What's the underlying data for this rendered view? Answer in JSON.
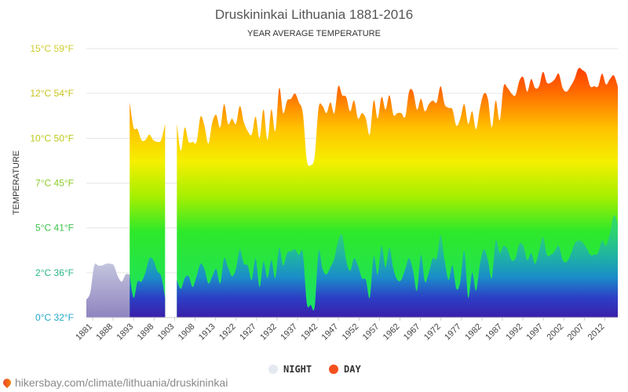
{
  "chart_data": {
    "type": "area",
    "title": "Druskininkai Lithuania 1881-2016",
    "subtitle": "YEAR AVERAGE TEMPERATURE",
    "ylabel": "TEMPERATURE",
    "ylim": [
      0,
      15
    ],
    "xlim": [
      1881,
      2016
    ],
    "yticks": [
      {
        "value": 0,
        "label": "0°C 32°F",
        "color": "#22a8c8"
      },
      {
        "value": 2.5,
        "label": "2°C 36°F",
        "color": "#2ab58a"
      },
      {
        "value": 5,
        "label": "5°C 41°F",
        "color": "#3dc24a"
      },
      {
        "value": 7.5,
        "label": "7°C 45°F",
        "color": "#8ccc28"
      },
      {
        "value": 10,
        "label": "10°C 50°F",
        "color": "#bdc91a"
      },
      {
        "value": 12.5,
        "label": "12°C 54°F",
        "color": "#c9c31c"
      },
      {
        "value": 15,
        "label": "15°C 59°F",
        "color": "#cfcb2a"
      }
    ],
    "xticks": [
      "1881",
      "1888",
      "1893",
      "1898",
      "1903",
      "1908",
      "1913",
      "1922",
      "1927",
      "1932",
      "1937",
      "1942",
      "1947",
      "1952",
      "1957",
      "1962",
      "1967",
      "1972",
      "1977",
      "1982",
      "1987",
      "1992",
      "1997",
      "2002",
      "2007",
      "2012"
    ],
    "grid": true,
    "legend": {
      "position": "bottom-center",
      "items": [
        {
          "name": "NIGHT",
          "color": "#e4e8f0"
        },
        {
          "name": "DAY",
          "color": "#f4511e"
        }
      ]
    },
    "early_night": {
      "x": [
        1881,
        1882,
        1883,
        1884,
        1885,
        1886,
        1887,
        1888,
        1889,
        1890,
        1891,
        1892
      ],
      "y": [
        1.0,
        1.4,
        2.9,
        2.9,
        2.9,
        3.0,
        3.0,
        2.9,
        2.3,
        2.0,
        2.4,
        2.4
      ]
    },
    "series": [
      {
        "name": "DAY",
        "x": [
          1892,
          1893,
          1894,
          1895,
          1896,
          1897,
          1898,
          1899,
          1900,
          1901,
          1902,
          1903,
          1904,
          1905,
          1906,
          1907,
          1908,
          1909,
          1910,
          1911,
          1912,
          1913,
          1914,
          1915,
          1916,
          1917,
          1918,
          1919,
          1920,
          1921,
          1922,
          1923,
          1924,
          1925,
          1926,
          1927,
          1928,
          1929,
          1930,
          1931,
          1932,
          1933,
          1934,
          1935,
          1936,
          1937,
          1938,
          1939,
          1940,
          1941,
          1942,
          1943,
          1944,
          1945,
          1946,
          1947,
          1948,
          1949,
          1950,
          1951,
          1952,
          1953,
          1954,
          1955,
          1956,
          1957,
          1958,
          1959,
          1960,
          1961,
          1962,
          1963,
          1964,
          1965,
          1966,
          1967,
          1968,
          1969,
          1970,
          1971,
          1972,
          1973,
          1974,
          1975,
          1976,
          1977,
          1978,
          1979,
          1980,
          1981,
          1982,
          1983,
          1984,
          1985,
          1986,
          1987,
          1988,
          1989,
          1990,
          1991,
          1992,
          1993,
          1994,
          1995,
          1996,
          1997,
          1998,
          1999,
          2000,
          2001,
          2002,
          2003,
          2004,
          2005,
          2006,
          2007,
          2008,
          2009,
          2010,
          2011,
          2012,
          2013,
          2014,
          2015,
          2016
        ],
        "values": [
          12.0,
          10.6,
          10.5,
          9.9,
          9.9,
          10.2,
          9.9,
          9.8,
          9.9,
          10.8,
          null,
          null,
          10.8,
          9.3,
          10.6,
          9.8,
          9.8,
          9.8,
          11.2,
          10.7,
          9.7,
          10.9,
          11.3,
          10.6,
          11.9,
          10.8,
          11.1,
          10.8,
          11.8,
          10.9,
          10.4,
          10.2,
          11.2,
          10.0,
          11.6,
          9.9,
          11.6,
          10.4,
          12.8,
          11.4,
          12.1,
          12.2,
          12.5,
          12.0,
          11.4,
          8.8,
          8.5,
          9.0,
          11.7,
          11.8,
          11.4,
          12.0,
          11.4,
          12.9,
          12.4,
          12.3,
          11.5,
          12.1,
          11.1,
          11.4,
          11.1,
          10.2,
          12.1,
          11.1,
          12.3,
          11.6,
          12.4,
          11.3,
          11.4,
          11.4,
          11.2,
          12.6,
          12.6,
          11.6,
          12.2,
          11.5,
          11.9,
          12.1,
          12.0,
          12.9,
          11.9,
          11.7,
          11.6,
          10.7,
          11.1,
          11.9,
          10.8,
          11.5,
          10.5,
          11.7,
          12.5,
          12.2,
          10.6,
          12.1,
          11.0,
          12.9,
          12.8,
          12.5,
          12.4,
          13.2,
          13.4,
          12.6,
          13.3,
          12.8,
          12.9,
          13.7,
          13.1,
          13.1,
          13.3,
          13.6,
          12.8,
          12.6,
          12.9,
          13.3,
          13.9,
          13.8,
          13.6,
          12.9,
          12.9,
          12.9,
          13.6,
          13.0,
          13.3,
          13.5,
          12.9
        ]
      },
      {
        "name": "NIGHT",
        "x": [
          1892,
          1893,
          1894,
          1895,
          1896,
          1897,
          1898,
          1899,
          1900,
          1901,
          1902,
          1903,
          1904,
          1905,
          1906,
          1907,
          1908,
          1909,
          1910,
          1911,
          1912,
          1913,
          1914,
          1915,
          1916,
          1917,
          1918,
          1919,
          1920,
          1921,
          1922,
          1923,
          1924,
          1925,
          1926,
          1927,
          1928,
          1929,
          1930,
          1931,
          1932,
          1933,
          1934,
          1935,
          1936,
          1937,
          1938,
          1939,
          1940,
          1941,
          1942,
          1943,
          1944,
          1945,
          1946,
          1947,
          1948,
          1949,
          1950,
          1951,
          1952,
          1953,
          1954,
          1955,
          1956,
          1957,
          1958,
          1959,
          1960,
          1961,
          1962,
          1963,
          1964,
          1965,
          1966,
          1967,
          1968,
          1969,
          1970,
          1971,
          1972,
          1973,
          1974,
          1975,
          1976,
          1977,
          1978,
          1979,
          1980,
          1981,
          1982,
          1983,
          1984,
          1985,
          1986,
          1987,
          1988,
          1989,
          1990,
          1991,
          1992,
          1993,
          1994,
          1995,
          1996,
          1997,
          1998,
          1999,
          2000,
          2001,
          2002,
          2003,
          2004,
          2005,
          2006,
          2007,
          2008,
          2009,
          2010,
          2011,
          2012,
          2013,
          2014,
          2015,
          2016
        ],
        "values": [
          2.4,
          1.1,
          2.0,
          2.0,
          2.5,
          3.3,
          3.2,
          2.6,
          2.3,
          1.1,
          null,
          null,
          2.1,
          1.6,
          2.2,
          2.3,
          1.7,
          2.3,
          3.0,
          2.7,
          1.9,
          2.3,
          2.7,
          1.9,
          3.3,
          2.8,
          2.3,
          2.7,
          3.8,
          3.0,
          2.9,
          2.1,
          3.3,
          1.7,
          3.1,
          2.2,
          3.2,
          2.2,
          3.9,
          2.9,
          3.6,
          3.7,
          3.8,
          3.5,
          3.6,
          0.8,
          0.7,
          0.6,
          3.7,
          2.7,
          2.4,
          2.8,
          3.3,
          4.3,
          4.6,
          3.2,
          2.6,
          3.3,
          2.9,
          2.2,
          2.1,
          1.1,
          3.4,
          2.4,
          4.0,
          2.8,
          3.9,
          2.7,
          2.1,
          2.1,
          2.7,
          3.3,
          2.6,
          1.5,
          3.5,
          2.0,
          2.5,
          3.3,
          3.3,
          4.6,
          3.2,
          2.1,
          2.9,
          1.6,
          2.0,
          3.7,
          1.1,
          2.5,
          1.5,
          3.0,
          3.8,
          3.2,
          2.2,
          4.3,
          3.6,
          4.0,
          3.8,
          3.2,
          3.3,
          4.1,
          4.0,
          3.2,
          3.6,
          3.0,
          3.7,
          4.5,
          3.5,
          3.5,
          3.7,
          4.0,
          3.2,
          3.1,
          3.5,
          4.1,
          4.3,
          4.2,
          3.9,
          3.5,
          3.5,
          3.6,
          4.3,
          4.0,
          4.7,
          5.7,
          5.2
        ]
      }
    ]
  },
  "source": {
    "text": "hikersbay.com/climate/lithuania/druskininkai"
  }
}
